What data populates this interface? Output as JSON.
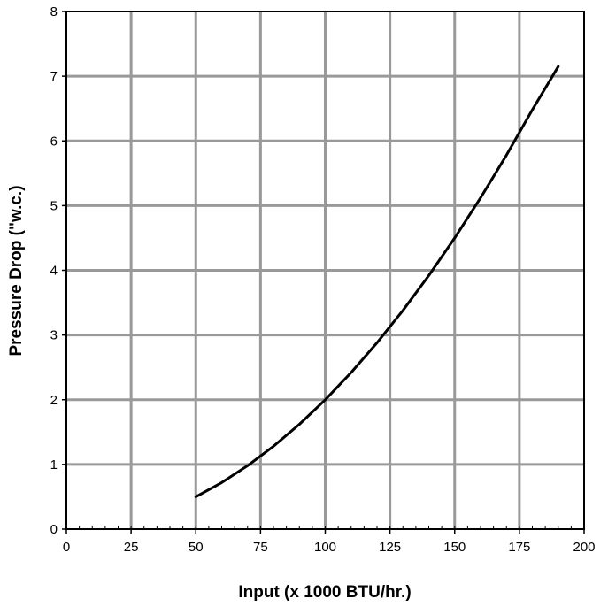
{
  "chart_data": {
    "type": "line",
    "title": "",
    "xlabel": "Input (x 1000 BTU/hr.)",
    "ylabel": "Pressure Drop (\"w.c.)",
    "xlim": [
      0,
      200
    ],
    "ylim": [
      0,
      8
    ],
    "x_ticks": [
      "0",
      "25",
      "50",
      "75",
      "100",
      "125",
      "150",
      "175",
      "200"
    ],
    "y_ticks": [
      "0",
      "1",
      "2",
      "3",
      "4",
      "5",
      "6",
      "7",
      "8"
    ],
    "grid": true,
    "legend": "none",
    "series": [
      {
        "x": [
          50,
          60,
          70,
          80,
          90,
          100,
          110,
          120,
          130,
          140,
          150,
          160,
          170,
          180,
          190
        ],
        "y": [
          0.5,
          0.72,
          0.98,
          1.28,
          1.62,
          2.0,
          2.42,
          2.88,
          3.38,
          3.92,
          4.5,
          5.12,
          5.78,
          6.48,
          7.15
        ]
      }
    ],
    "colors": {
      "line": "#000000",
      "grid": "#999999",
      "frame": "#000000"
    }
  }
}
